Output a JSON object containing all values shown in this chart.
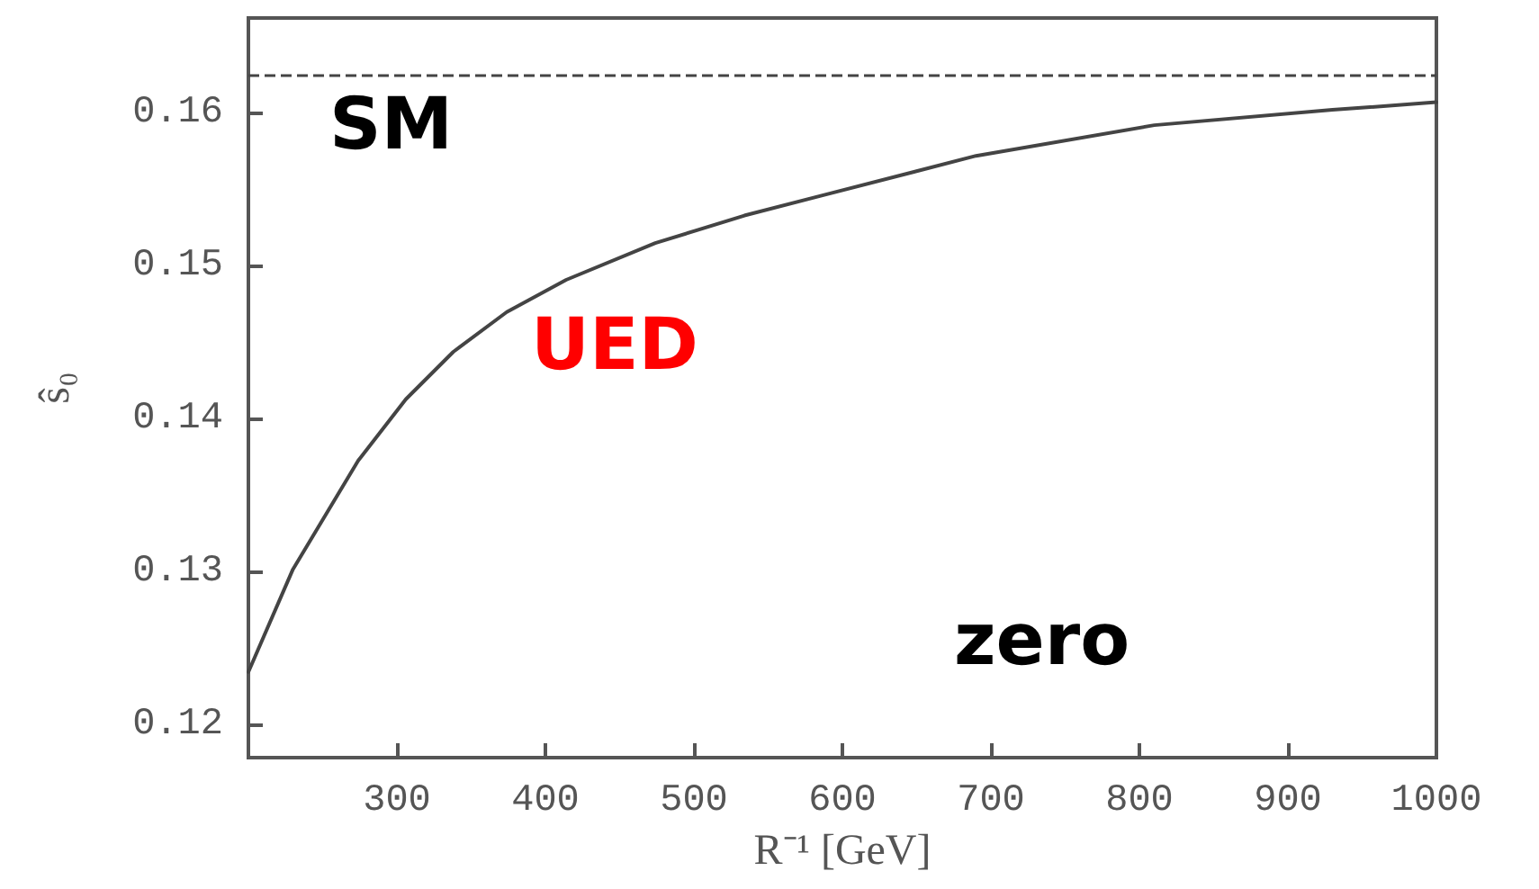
{
  "chart_data": {
    "type": "line",
    "xlabel": "R⁻¹ [GeV]",
    "ylabel": "ŝ₀",
    "series": [
      {
        "color": "#444444",
        "x": [
          200,
          230,
          274,
          306,
          338,
          374,
          414,
          474,
          534,
          586,
          690,
          810,
          930,
          1000
        ],
        "values": [
          0.1235,
          0.1302,
          0.1373,
          0.1413,
          0.1444,
          0.147,
          0.1491,
          0.1515,
          0.1533,
          0.1546,
          0.1572,
          0.1592,
          0.1602,
          0.1607
        ]
      }
    ],
    "ref_lines": [
      {
        "axis": "y",
        "value": 0.1625,
        "label": "SM",
        "line_style": "dashed",
        "color": "#444444"
      }
    ],
    "annotations": [
      "UED",
      "zero"
    ],
    "xlim": [
      200,
      1000
    ],
    "xticks": [
      300,
      400,
      500,
      600,
      700,
      800,
      900,
      1000
    ],
    "ylim": [
      0.1179,
      0.1662
    ],
    "yticks": [
      0.12,
      0.13,
      0.14,
      0.15,
      0.16
    ],
    "marker": "none",
    "line_style": "solid",
    "grid": false
  }
}
